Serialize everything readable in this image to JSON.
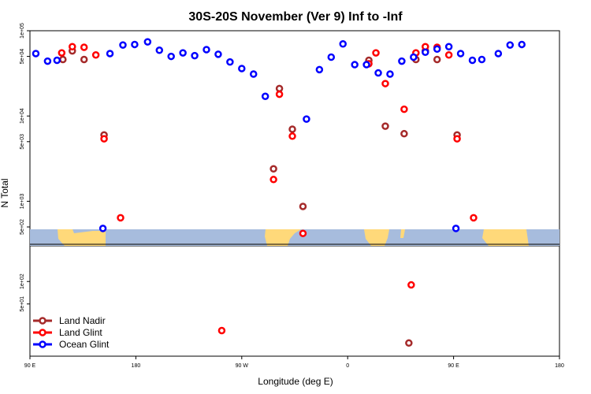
{
  "chart_data": {
    "type": "scatter",
    "title": "30S-20S November (Ver 9)   Inf to -Inf",
    "xlabel": "Longitude (deg E)",
    "ylabel": "N Total",
    "y_scale": "log",
    "x_tick_labels": [
      "90 E",
      "180",
      "90 W",
      "0",
      "90 E",
      "180"
    ],
    "y_tick_labels_upper": [
      "1e+05",
      "5e+04",
      "1e+04",
      "5e+03",
      "1e+03",
      "5e+02"
    ],
    "y_tick_labels_lower": [
      "1e+02",
      "5e+01"
    ],
    "legend_position": "bottom-left",
    "series": [
      {
        "name": "Land Nadir",
        "color": "#a52a2a",
        "points": [
          {
            "x": 118,
            "y": 46000
          },
          {
            "x": 126,
            "y": 58000
          },
          {
            "x": 136,
            "y": 46000
          },
          {
            "x": 153,
            "y": 6000
          },
          {
            "x": 297,
            "y": 2400
          },
          {
            "x": 302,
            "y": 21000
          },
          {
            "x": 313,
            "y": 7000
          },
          {
            "x": 322,
            "y": 870
          },
          {
            "x": 378,
            "y": 45000
          },
          {
            "x": 392,
            "y": 7600
          },
          {
            "x": 408,
            "y": 6200
          },
          {
            "x": 418,
            "y": 46000
          },
          {
            "x": 426,
            "y": 58000
          },
          {
            "x": 436,
            "y": 46000
          },
          {
            "x": 453,
            "y": 6000
          },
          {
            "x": 412,
            "y": 15
          }
        ]
      },
      {
        "name": "Land Glint",
        "color": "#ff0000",
        "points": [
          {
            "x": 117,
            "y": 55000
          },
          {
            "x": 126,
            "y": 65000
          },
          {
            "x": 136,
            "y": 64000
          },
          {
            "x": 146,
            "y": 52000
          },
          {
            "x": 153,
            "y": 5400
          },
          {
            "x": 167,
            "y": 640
          },
          {
            "x": 297,
            "y": 1800
          },
          {
            "x": 302,
            "y": 18000
          },
          {
            "x": 313,
            "y": 5800
          },
          {
            "x": 322,
            "y": 420
          },
          {
            "x": 378,
            "y": 41000
          },
          {
            "x": 384,
            "y": 55000
          },
          {
            "x": 392,
            "y": 24000
          },
          {
            "x": 408,
            "y": 12000
          },
          {
            "x": 418,
            "y": 55000
          },
          {
            "x": 426,
            "y": 65000
          },
          {
            "x": 436,
            "y": 64000
          },
          {
            "x": 446,
            "y": 52000
          },
          {
            "x": 453,
            "y": 5400
          },
          {
            "x": 467,
            "y": 640
          },
          {
            "x": 253,
            "y": 22
          },
          {
            "x": 414,
            "y": 90
          }
        ]
      },
      {
        "name": "Ocean Glint",
        "color": "#0000ff",
        "points": [
          {
            "x": 95,
            "y": 54000
          },
          {
            "x": 105,
            "y": 44000
          },
          {
            "x": 113,
            "y": 45000
          },
          {
            "x": 152,
            "y": 480
          },
          {
            "x": 158,
            "y": 54000
          },
          {
            "x": 169,
            "y": 68000
          },
          {
            "x": 179,
            "y": 69000
          },
          {
            "x": 190,
            "y": 74000
          },
          {
            "x": 200,
            "y": 59000
          },
          {
            "x": 210,
            "y": 50000
          },
          {
            "x": 220,
            "y": 55000
          },
          {
            "x": 230,
            "y": 51000
          },
          {
            "x": 240,
            "y": 60000
          },
          {
            "x": 250,
            "y": 53000
          },
          {
            "x": 260,
            "y": 43000
          },
          {
            "x": 270,
            "y": 36000
          },
          {
            "x": 280,
            "y": 31000
          },
          {
            "x": 290,
            "y": 17000
          },
          {
            "x": 325,
            "y": 9200
          },
          {
            "x": 336,
            "y": 35000
          },
          {
            "x": 346,
            "y": 49000
          },
          {
            "x": 356,
            "y": 70000
          },
          {
            "x": 366,
            "y": 40000
          },
          {
            "x": 376,
            "y": 40000
          },
          {
            "x": 386,
            "y": 32000
          },
          {
            "x": 396,
            "y": 31000
          },
          {
            "x": 406,
            "y": 44000
          },
          {
            "x": 416,
            "y": 49000
          },
          {
            "x": 426,
            "y": 56000
          },
          {
            "x": 436,
            "y": 61000
          },
          {
            "x": 446,
            "y": 65000
          },
          {
            "x": 456,
            "y": 54000
          },
          {
            "x": 466,
            "y": 45000
          },
          {
            "x": 474,
            "y": 46000
          },
          {
            "x": 452,
            "y": 480
          },
          {
            "x": 488,
            "y": 54000
          },
          {
            "x": 498,
            "y": 68000
          },
          {
            "x": 508,
            "y": 69000
          }
        ]
      }
    ]
  }
}
